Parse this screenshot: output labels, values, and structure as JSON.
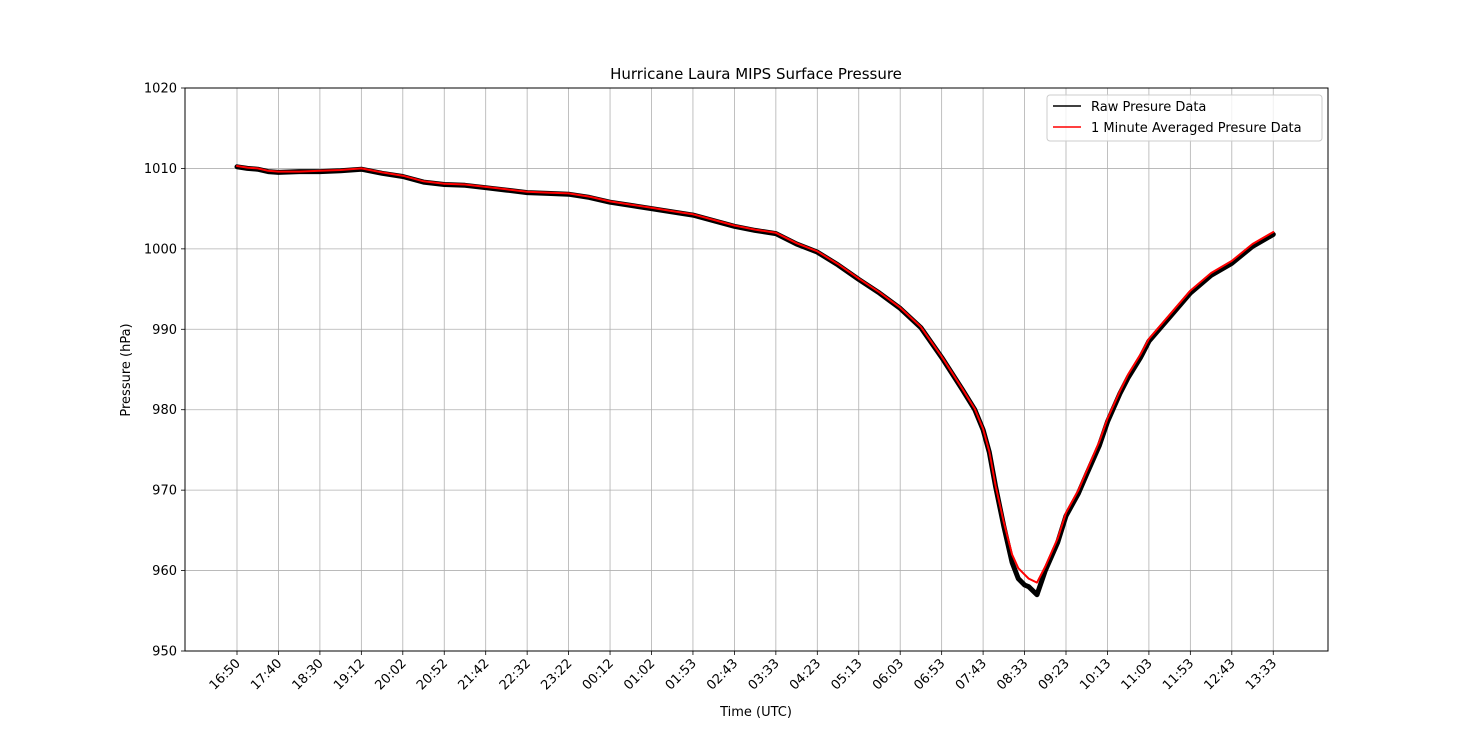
{
  "chart_data": {
    "type": "line",
    "title": "Hurricane Laura MIPS Surface Pressure",
    "xlabel": "Time (UTC)",
    "ylabel": "Pressure (hPa)",
    "ylim": [
      950,
      1020
    ],
    "yticks": [
      950,
      960,
      970,
      980,
      990,
      1000,
      1010,
      1020
    ],
    "x_ticks": [
      "16:50",
      "17:40",
      "18:30",
      "19:12",
      "20:02",
      "20:52",
      "21:42",
      "22:32",
      "23:22",
      "00:12",
      "01:02",
      "01:53",
      "02:43",
      "03:33",
      "04:23",
      "05:13",
      "06:03",
      "06:53",
      "07:43",
      "08:33",
      "09:23",
      "10:13",
      "11:03",
      "11:53",
      "12:43",
      "13:33"
    ],
    "grid": true,
    "legend_position": "top-right",
    "series": [
      {
        "name": "Raw Presure Data",
        "color": "#000000",
        "tick_positions": [
          0,
          0.25,
          0.5,
          0.75,
          1,
          1.5,
          2,
          2.5,
          3,
          3.5,
          4,
          4.5,
          5,
          5.5,
          6,
          6.5,
          7,
          7.5,
          8,
          8.5,
          9,
          9.5,
          10,
          10.5,
          11,
          11.5,
          12,
          12.5,
          13,
          13.5,
          14,
          14.5,
          15,
          15.5,
          16,
          16.5,
          17,
          17.5,
          17.8,
          18,
          18.15,
          18.3,
          18.5,
          18.7,
          18.85,
          19,
          19.1,
          19.3,
          19.5,
          19.8,
          20,
          20.3,
          20.5,
          20.8,
          21,
          21.3,
          21.5,
          21.8,
          22,
          22.5,
          23,
          23.5,
          24,
          24.5,
          25
        ],
        "values": [
          1010.2,
          1010.0,
          1009.9,
          1009.6,
          1009.5,
          1009.6,
          1009.6,
          1009.7,
          1009.9,
          1009.4,
          1009.0,
          1008.3,
          1008.0,
          1007.9,
          1007.6,
          1007.3,
          1007.0,
          1006.9,
          1006.8,
          1006.4,
          1005.8,
          1005.4,
          1005.0,
          1004.6,
          1004.2,
          1003.5,
          1002.8,
          1002.3,
          1001.9,
          1000.6,
          999.6,
          998.0,
          996.2,
          994.5,
          992.6,
          990.2,
          986.5,
          982.5,
          980.0,
          977.5,
          974.7,
          970.5,
          965.5,
          961.0,
          959.0,
          958.2,
          958.0,
          957.0,
          960.0,
          963.5,
          966.8,
          969.6,
          972.0,
          975.5,
          978.5,
          982.0,
          984.0,
          986.5,
          988.5,
          991.5,
          994.5,
          996.7,
          998.2,
          1000.3,
          1001.8
        ]
      },
      {
        "name": "1 Minute Averaged Presure Data",
        "color": "#ff0000",
        "tick_positions": [
          0,
          0.25,
          0.5,
          0.75,
          1,
          1.5,
          2,
          2.5,
          3,
          3.5,
          4,
          4.5,
          5,
          5.5,
          6,
          6.5,
          7,
          7.5,
          8,
          8.5,
          9,
          9.5,
          10,
          10.5,
          11,
          11.5,
          12,
          12.5,
          13,
          13.5,
          14,
          14.5,
          15,
          15.5,
          16,
          16.5,
          17,
          17.5,
          17.8,
          18,
          18.15,
          18.3,
          18.5,
          18.7,
          18.85,
          19,
          19.1,
          19.3,
          19.5,
          19.8,
          20,
          20.3,
          20.5,
          20.8,
          21,
          21.3,
          21.5,
          21.8,
          22,
          22.5,
          23,
          23.5,
          24,
          24.5,
          25
        ],
        "values": [
          1010.3,
          1010.1,
          1010.0,
          1009.7,
          1009.6,
          1009.6,
          1009.7,
          1009.8,
          1010.0,
          1009.5,
          1009.1,
          1008.4,
          1008.1,
          1008.0,
          1007.7,
          1007.4,
          1007.1,
          1007.0,
          1006.9,
          1006.5,
          1005.9,
          1005.5,
          1005.1,
          1004.7,
          1004.3,
          1003.6,
          1002.9,
          1002.4,
          1002.0,
          1000.7,
          999.7,
          998.1,
          996.3,
          994.6,
          992.7,
          990.3,
          986.6,
          982.6,
          980.1,
          977.6,
          974.8,
          970.6,
          966.0,
          962.0,
          960.3,
          959.5,
          959.0,
          958.5,
          960.5,
          964.0,
          967.2,
          970.0,
          972.4,
          976.0,
          978.9,
          982.3,
          984.4,
          986.9,
          988.8,
          991.8,
          994.8,
          997.0,
          998.5,
          1000.6,
          1002.1
        ]
      }
    ]
  }
}
